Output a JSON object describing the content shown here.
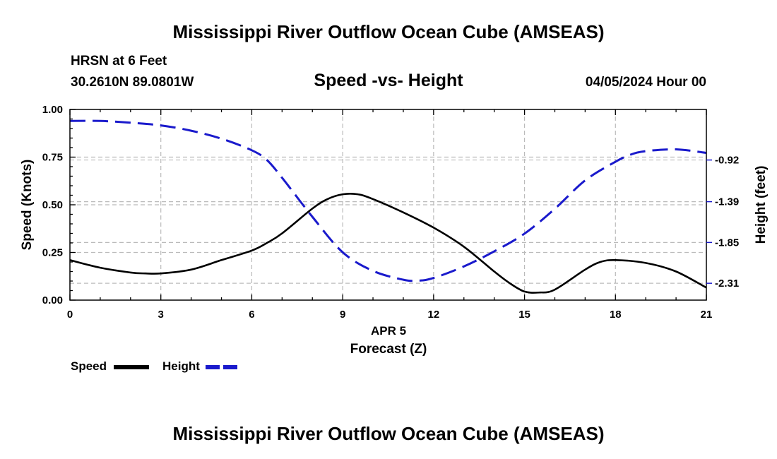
{
  "header": {
    "main_title": "Mississippi River Outflow Ocean Cube (AMSEAS)",
    "station": "HRSN at 6 Feet",
    "coords": "30.2610N  89.0801W",
    "subtitle": "Speed -vs- Height",
    "datetime": "04/05/2024 Hour 00"
  },
  "footer": {
    "title": "Mississippi River Outflow Ocean Cube (AMSEAS)"
  },
  "legend": {
    "speed_label": "Speed",
    "height_label": "Height",
    "speed_color": "#000000",
    "height_color": "#1a1acc"
  },
  "chart_data": {
    "type": "line",
    "title": "Speed -vs- Height",
    "xlabel": "Forecast (Z)",
    "xlabel_date": "APR 5",
    "ylabel": "Speed (Knots)",
    "y2label": "Height (feet)",
    "xlim": [
      0,
      21
    ],
    "ylim": [
      0,
      1
    ],
    "y2lim": [
      -2.5,
      -0.35
    ],
    "grid": true,
    "x_ticks": [
      0,
      3,
      6,
      9,
      12,
      15,
      18,
      21
    ],
    "x_tick_labels": [
      "0",
      "3",
      "6",
      "9",
      "12",
      "15",
      "18",
      "21"
    ],
    "y_ticks": [
      0,
      0.25,
      0.5,
      0.75,
      1.0
    ],
    "y_tick_labels": [
      "0.00",
      "0.25",
      "0.50",
      "0.75",
      "1.00"
    ],
    "y2_ticks": [
      -0.92,
      -1.39,
      -1.85,
      -2.31
    ],
    "y2_tick_labels": [
      "-0.92",
      "-1.39",
      "-1.85",
      "-2.31"
    ],
    "series": [
      {
        "name": "Speed",
        "axis": "left",
        "style": "solid",
        "color": "#000000",
        "x": [
          0,
          1,
          2,
          2.5,
          3,
          4,
          5,
          6,
          6.5,
          7,
          8,
          8.5,
          9,
          9.5,
          10,
          11,
          12,
          13,
          14,
          14.5,
          15,
          15.5,
          16,
          17,
          17.5,
          18,
          19,
          20,
          21
        ],
        "y": [
          0.21,
          0.17,
          0.145,
          0.14,
          0.14,
          0.16,
          0.21,
          0.26,
          0.3,
          0.35,
          0.48,
          0.53,
          0.555,
          0.555,
          0.53,
          0.46,
          0.38,
          0.28,
          0.15,
          0.09,
          0.045,
          0.04,
          0.055,
          0.16,
          0.2,
          0.21,
          0.195,
          0.15,
          0.065
        ]
      },
      {
        "name": "Height",
        "axis": "right",
        "style": "dashed",
        "color": "#1a1acc",
        "x": [
          0,
          1,
          2,
          3,
          4,
          5,
          6,
          6.5,
          7,
          8,
          9,
          10,
          11,
          11.5,
          12,
          13,
          14,
          15,
          16,
          17,
          18,
          18.5,
          19,
          20,
          21
        ],
        "y": [
          -0.48,
          -0.48,
          -0.5,
          -0.53,
          -0.59,
          -0.68,
          -0.81,
          -0.92,
          -1.12,
          -1.56,
          -1.96,
          -2.17,
          -2.27,
          -2.28,
          -2.25,
          -2.12,
          -1.95,
          -1.75,
          -1.47,
          -1.15,
          -0.94,
          -0.86,
          -0.82,
          -0.8,
          -0.84
        ]
      }
    ]
  }
}
